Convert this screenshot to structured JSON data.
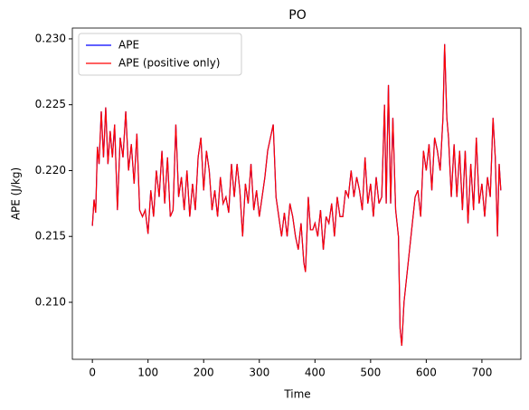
{
  "chart_data": {
    "type": "line",
    "title": "PO",
    "x_label": "Time",
    "y_label": "APE (J/kg)",
    "xlim": [
      -36,
      770
    ],
    "ylim": [
      0.20567,
      0.23082
    ],
    "xticks": [
      0,
      100,
      200,
      300,
      400,
      500,
      600,
      700
    ],
    "yticks": [
      {
        "value": 0.21,
        "label": "0.210"
      },
      0.215,
      {
        "value": 0.22,
        "label": "0.220"
      },
      0.225,
      {
        "value": 0.23,
        "label": "0.230"
      }
    ],
    "legend": "upper left",
    "x": [
      0,
      3,
      6,
      9,
      12,
      16,
      20,
      24,
      28,
      32,
      36,
      40,
      45,
      50,
      55,
      60,
      65,
      70,
      75,
      80,
      85,
      90,
      95,
      100,
      105,
      110,
      115,
      120,
      125,
      130,
      135,
      140,
      145,
      150,
      155,
      160,
      165,
      170,
      175,
      180,
      185,
      190,
      195,
      200,
      205,
      210,
      215,
      220,
      225,
      230,
      235,
      240,
      245,
      250,
      255,
      260,
      265,
      270,
      275,
      280,
      285,
      290,
      295,
      300,
      305,
      310,
      315,
      320,
      325,
      330,
      335,
      340,
      345,
      350,
      355,
      360,
      365,
      370,
      375,
      380,
      383,
      388,
      392,
      396,
      400,
      405,
      410,
      415,
      420,
      425,
      430,
      435,
      440,
      445,
      450,
      455,
      460,
      465,
      470,
      475,
      480,
      485,
      490,
      495,
      500,
      505,
      510,
      515,
      520,
      525,
      528,
      532,
      536,
      540,
      545,
      550,
      553,
      556,
      560,
      565,
      570,
      575,
      580,
      585,
      590,
      595,
      600,
      605,
      610,
      615,
      620,
      625,
      630,
      633,
      637,
      640,
      645,
      650,
      655,
      660,
      665,
      670,
      675,
      680,
      685,
      690,
      695,
      700,
      705,
      710,
      715,
      720,
      724,
      728,
      731,
      734
    ],
    "series": [
      {
        "name": "APE",
        "color": "#0000ff",
        "values": [
          0.2158,
          0.2178,
          0.2168,
          0.2218,
          0.2205,
          0.2245,
          0.221,
          0.2248,
          0.2205,
          0.223,
          0.221,
          0.2235,
          0.217,
          0.2225,
          0.221,
          0.2245,
          0.22,
          0.222,
          0.219,
          0.2228,
          0.217,
          0.2165,
          0.217,
          0.2152,
          0.2185,
          0.2165,
          0.22,
          0.218,
          0.2215,
          0.2175,
          0.221,
          0.2165,
          0.217,
          0.2235,
          0.218,
          0.2195,
          0.217,
          0.22,
          0.2165,
          0.219,
          0.217,
          0.221,
          0.2225,
          0.2185,
          0.2215,
          0.22,
          0.217,
          0.2185,
          0.2165,
          0.2195,
          0.2175,
          0.218,
          0.2168,
          0.2205,
          0.218,
          0.2205,
          0.2185,
          0.215,
          0.219,
          0.2175,
          0.2205,
          0.217,
          0.2185,
          0.2165,
          0.218,
          0.2195,
          0.2215,
          0.2225,
          0.2235,
          0.218,
          0.2165,
          0.215,
          0.2168,
          0.215,
          0.2175,
          0.2165,
          0.215,
          0.214,
          0.216,
          0.213,
          0.2123,
          0.218,
          0.2155,
          0.2155,
          0.216,
          0.215,
          0.217,
          0.214,
          0.2165,
          0.216,
          0.2175,
          0.215,
          0.218,
          0.2165,
          0.2165,
          0.2185,
          0.218,
          0.22,
          0.218,
          0.2195,
          0.2185,
          0.217,
          0.221,
          0.2175,
          0.219,
          0.2165,
          0.2195,
          0.2175,
          0.218,
          0.225,
          0.2175,
          0.2265,
          0.2175,
          0.224,
          0.217,
          0.215,
          0.208,
          0.2067,
          0.21,
          0.212,
          0.214,
          0.216,
          0.218,
          0.2185,
          0.2165,
          0.2215,
          0.22,
          0.222,
          0.2185,
          0.2225,
          0.2215,
          0.22,
          0.224,
          0.2296,
          0.224,
          0.2225,
          0.218,
          0.222,
          0.218,
          0.2215,
          0.217,
          0.2215,
          0.216,
          0.2205,
          0.217,
          0.2225,
          0.2175,
          0.219,
          0.2165,
          0.2195,
          0.218,
          0.224,
          0.221,
          0.215,
          0.2205,
          0.2185
        ]
      },
      {
        "name": "APE (positive only)",
        "color": "#ff0000",
        "values": [
          0.2158,
          0.2178,
          0.2168,
          0.2218,
          0.2205,
          0.2245,
          0.221,
          0.2248,
          0.2205,
          0.223,
          0.221,
          0.2235,
          0.217,
          0.2225,
          0.221,
          0.2245,
          0.22,
          0.222,
          0.219,
          0.2228,
          0.217,
          0.2165,
          0.217,
          0.2152,
          0.2185,
          0.2165,
          0.22,
          0.218,
          0.2215,
          0.2175,
          0.221,
          0.2165,
          0.217,
          0.2235,
          0.218,
          0.2195,
          0.217,
          0.22,
          0.2165,
          0.219,
          0.217,
          0.221,
          0.2225,
          0.2185,
          0.2215,
          0.22,
          0.217,
          0.2185,
          0.2165,
          0.2195,
          0.2175,
          0.218,
          0.2168,
          0.2205,
          0.218,
          0.2205,
          0.2185,
          0.215,
          0.219,
          0.2175,
          0.2205,
          0.217,
          0.2185,
          0.2165,
          0.218,
          0.2195,
          0.2215,
          0.2225,
          0.2235,
          0.218,
          0.2165,
          0.215,
          0.2168,
          0.215,
          0.2175,
          0.2165,
          0.215,
          0.214,
          0.216,
          0.213,
          0.2123,
          0.218,
          0.2155,
          0.2155,
          0.216,
          0.215,
          0.217,
          0.214,
          0.2165,
          0.216,
          0.2175,
          0.215,
          0.218,
          0.2165,
          0.2165,
          0.2185,
          0.218,
          0.22,
          0.218,
          0.2195,
          0.2185,
          0.217,
          0.221,
          0.2175,
          0.219,
          0.2165,
          0.2195,
          0.2175,
          0.218,
          0.225,
          0.2175,
          0.2265,
          0.2175,
          0.224,
          0.217,
          0.215,
          0.208,
          0.2067,
          0.21,
          0.212,
          0.214,
          0.216,
          0.218,
          0.2185,
          0.2165,
          0.2215,
          0.22,
          0.222,
          0.2185,
          0.2225,
          0.2215,
          0.22,
          0.224,
          0.2296,
          0.224,
          0.2225,
          0.218,
          0.222,
          0.218,
          0.2215,
          0.217,
          0.2215,
          0.216,
          0.2205,
          0.217,
          0.2225,
          0.2175,
          0.219,
          0.2165,
          0.2195,
          0.218,
          0.224,
          0.221,
          0.215,
          0.2205,
          0.2185
        ]
      }
    ]
  }
}
